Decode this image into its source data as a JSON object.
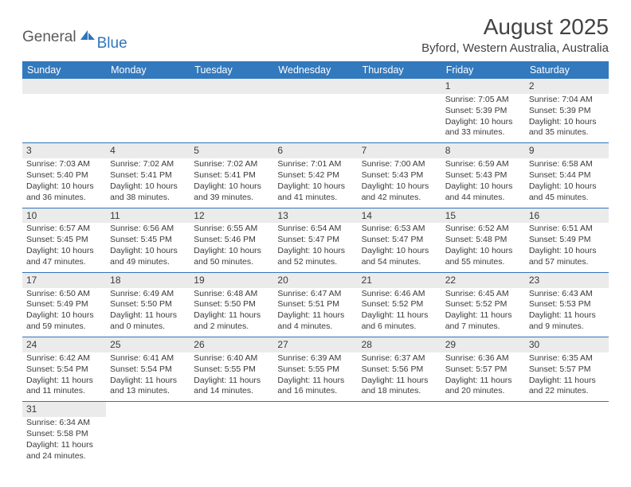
{
  "brand": {
    "general": "General",
    "blue": "Blue"
  },
  "title": {
    "month_year": "August 2025",
    "location": "Byford, Western Australia, Australia"
  },
  "colors": {
    "header_bg": "#3279be",
    "header_text": "#ffffff",
    "rule": "#2f76bb",
    "shade": "#ebebeb",
    "text": "#3a3a3a",
    "logo_gray": "#5a5a5a",
    "logo_blue": "#2f76bb"
  },
  "weekdays": [
    "Sunday",
    "Monday",
    "Tuesday",
    "Wednesday",
    "Thursday",
    "Friday",
    "Saturday"
  ],
  "weeks": [
    [
      null,
      null,
      null,
      null,
      null,
      {
        "d": "1",
        "sr": "Sunrise: 7:05 AM",
        "ss": "Sunset: 5:39 PM",
        "dl1": "Daylight: 10 hours",
        "dl2": "and 33 minutes."
      },
      {
        "d": "2",
        "sr": "Sunrise: 7:04 AM",
        "ss": "Sunset: 5:39 PM",
        "dl1": "Daylight: 10 hours",
        "dl2": "and 35 minutes."
      }
    ],
    [
      {
        "d": "3",
        "sr": "Sunrise: 7:03 AM",
        "ss": "Sunset: 5:40 PM",
        "dl1": "Daylight: 10 hours",
        "dl2": "and 36 minutes."
      },
      {
        "d": "4",
        "sr": "Sunrise: 7:02 AM",
        "ss": "Sunset: 5:41 PM",
        "dl1": "Daylight: 10 hours",
        "dl2": "and 38 minutes."
      },
      {
        "d": "5",
        "sr": "Sunrise: 7:02 AM",
        "ss": "Sunset: 5:41 PM",
        "dl1": "Daylight: 10 hours",
        "dl2": "and 39 minutes."
      },
      {
        "d": "6",
        "sr": "Sunrise: 7:01 AM",
        "ss": "Sunset: 5:42 PM",
        "dl1": "Daylight: 10 hours",
        "dl2": "and 41 minutes."
      },
      {
        "d": "7",
        "sr": "Sunrise: 7:00 AM",
        "ss": "Sunset: 5:43 PM",
        "dl1": "Daylight: 10 hours",
        "dl2": "and 42 minutes."
      },
      {
        "d": "8",
        "sr": "Sunrise: 6:59 AM",
        "ss": "Sunset: 5:43 PM",
        "dl1": "Daylight: 10 hours",
        "dl2": "and 44 minutes."
      },
      {
        "d": "9",
        "sr": "Sunrise: 6:58 AM",
        "ss": "Sunset: 5:44 PM",
        "dl1": "Daylight: 10 hours",
        "dl2": "and 45 minutes."
      }
    ],
    [
      {
        "d": "10",
        "sr": "Sunrise: 6:57 AM",
        "ss": "Sunset: 5:45 PM",
        "dl1": "Daylight: 10 hours",
        "dl2": "and 47 minutes."
      },
      {
        "d": "11",
        "sr": "Sunrise: 6:56 AM",
        "ss": "Sunset: 5:45 PM",
        "dl1": "Daylight: 10 hours",
        "dl2": "and 49 minutes."
      },
      {
        "d": "12",
        "sr": "Sunrise: 6:55 AM",
        "ss": "Sunset: 5:46 PM",
        "dl1": "Daylight: 10 hours",
        "dl2": "and 50 minutes."
      },
      {
        "d": "13",
        "sr": "Sunrise: 6:54 AM",
        "ss": "Sunset: 5:47 PM",
        "dl1": "Daylight: 10 hours",
        "dl2": "and 52 minutes."
      },
      {
        "d": "14",
        "sr": "Sunrise: 6:53 AM",
        "ss": "Sunset: 5:47 PM",
        "dl1": "Daylight: 10 hours",
        "dl2": "and 54 minutes."
      },
      {
        "d": "15",
        "sr": "Sunrise: 6:52 AM",
        "ss": "Sunset: 5:48 PM",
        "dl1": "Daylight: 10 hours",
        "dl2": "and 55 minutes."
      },
      {
        "d": "16",
        "sr": "Sunrise: 6:51 AM",
        "ss": "Sunset: 5:49 PM",
        "dl1": "Daylight: 10 hours",
        "dl2": "and 57 minutes."
      }
    ],
    [
      {
        "d": "17",
        "sr": "Sunrise: 6:50 AM",
        "ss": "Sunset: 5:49 PM",
        "dl1": "Daylight: 10 hours",
        "dl2": "and 59 minutes."
      },
      {
        "d": "18",
        "sr": "Sunrise: 6:49 AM",
        "ss": "Sunset: 5:50 PM",
        "dl1": "Daylight: 11 hours",
        "dl2": "and 0 minutes."
      },
      {
        "d": "19",
        "sr": "Sunrise: 6:48 AM",
        "ss": "Sunset: 5:50 PM",
        "dl1": "Daylight: 11 hours",
        "dl2": "and 2 minutes."
      },
      {
        "d": "20",
        "sr": "Sunrise: 6:47 AM",
        "ss": "Sunset: 5:51 PM",
        "dl1": "Daylight: 11 hours",
        "dl2": "and 4 minutes."
      },
      {
        "d": "21",
        "sr": "Sunrise: 6:46 AM",
        "ss": "Sunset: 5:52 PM",
        "dl1": "Daylight: 11 hours",
        "dl2": "and 6 minutes."
      },
      {
        "d": "22",
        "sr": "Sunrise: 6:45 AM",
        "ss": "Sunset: 5:52 PM",
        "dl1": "Daylight: 11 hours",
        "dl2": "and 7 minutes."
      },
      {
        "d": "23",
        "sr": "Sunrise: 6:43 AM",
        "ss": "Sunset: 5:53 PM",
        "dl1": "Daylight: 11 hours",
        "dl2": "and 9 minutes."
      }
    ],
    [
      {
        "d": "24",
        "sr": "Sunrise: 6:42 AM",
        "ss": "Sunset: 5:54 PM",
        "dl1": "Daylight: 11 hours",
        "dl2": "and 11 minutes."
      },
      {
        "d": "25",
        "sr": "Sunrise: 6:41 AM",
        "ss": "Sunset: 5:54 PM",
        "dl1": "Daylight: 11 hours",
        "dl2": "and 13 minutes."
      },
      {
        "d": "26",
        "sr": "Sunrise: 6:40 AM",
        "ss": "Sunset: 5:55 PM",
        "dl1": "Daylight: 11 hours",
        "dl2": "and 14 minutes."
      },
      {
        "d": "27",
        "sr": "Sunrise: 6:39 AM",
        "ss": "Sunset: 5:55 PM",
        "dl1": "Daylight: 11 hours",
        "dl2": "and 16 minutes."
      },
      {
        "d": "28",
        "sr": "Sunrise: 6:37 AM",
        "ss": "Sunset: 5:56 PM",
        "dl1": "Daylight: 11 hours",
        "dl2": "and 18 minutes."
      },
      {
        "d": "29",
        "sr": "Sunrise: 6:36 AM",
        "ss": "Sunset: 5:57 PM",
        "dl1": "Daylight: 11 hours",
        "dl2": "and 20 minutes."
      },
      {
        "d": "30",
        "sr": "Sunrise: 6:35 AM",
        "ss": "Sunset: 5:57 PM",
        "dl1": "Daylight: 11 hours",
        "dl2": "and 22 minutes."
      }
    ],
    [
      {
        "d": "31",
        "sr": "Sunrise: 6:34 AM",
        "ss": "Sunset: 5:58 PM",
        "dl1": "Daylight: 11 hours",
        "dl2": "and 24 minutes."
      },
      null,
      null,
      null,
      null,
      null,
      null
    ]
  ]
}
